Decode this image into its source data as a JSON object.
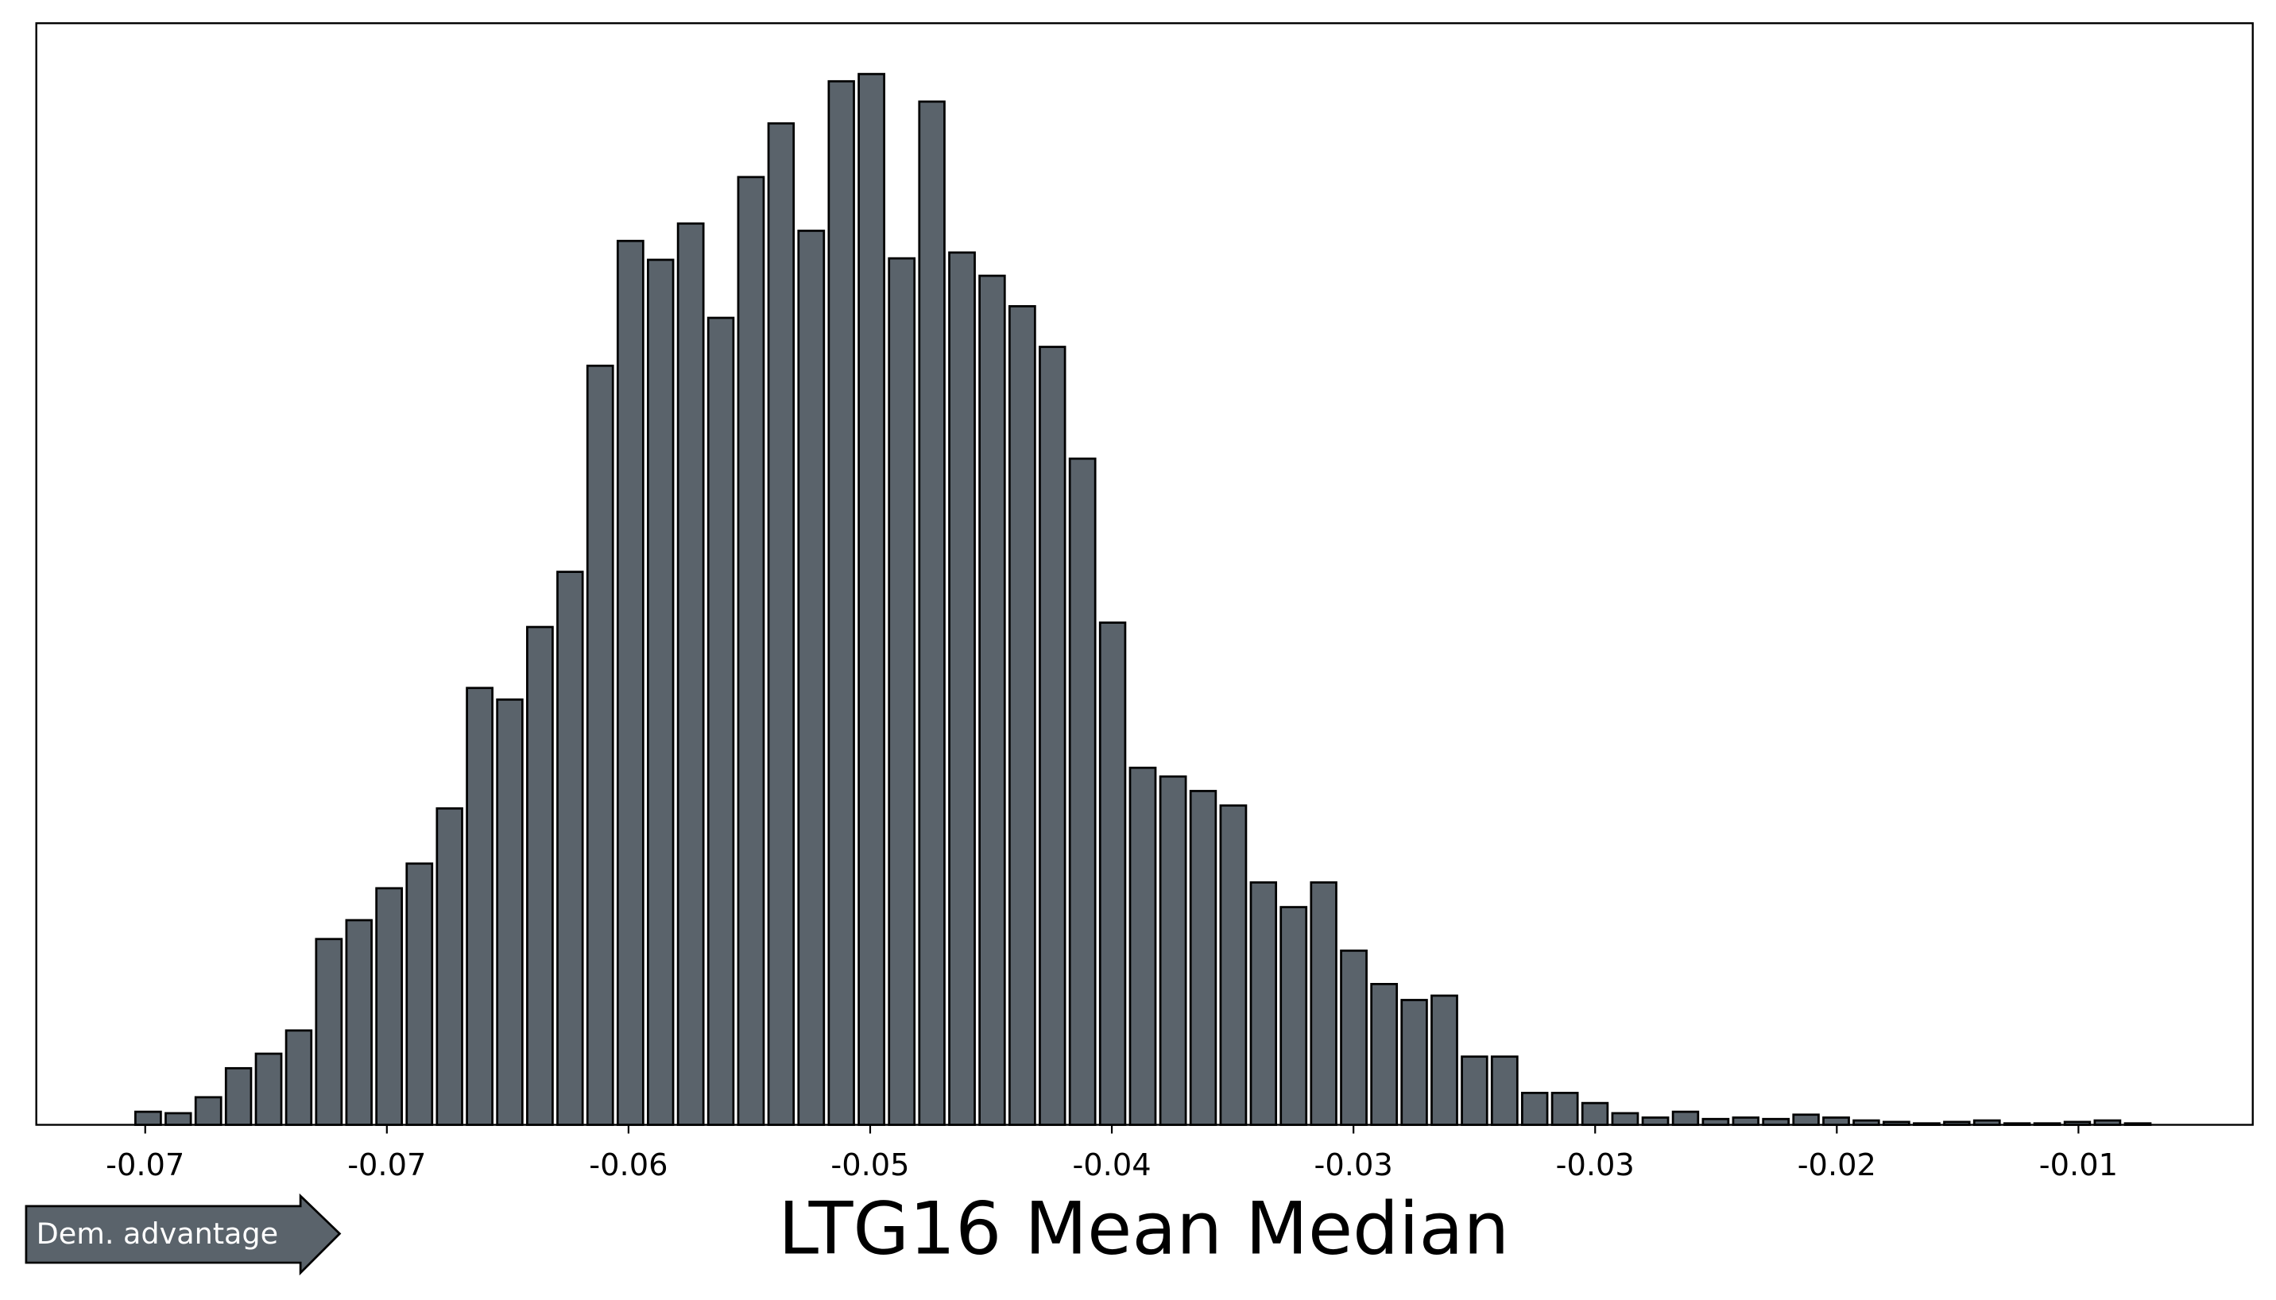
{
  "chart_data": {
    "type": "histogram",
    "xlabel": "LTG16 Mean Median",
    "annotation": "Dem. advantage",
    "color": "#5a636b",
    "xlim": [
      -0.07588,
      -0.00709
    ],
    "ylim": [
      0,
      759
    ],
    "xticks": [
      {
        "value": -0.0725,
        "label": "-0.07"
      },
      {
        "value": -0.065,
        "label": "-0.07"
      },
      {
        "value": -0.0575,
        "label": "-0.06"
      },
      {
        "value": -0.05,
        "label": "-0.05"
      },
      {
        "value": -0.0425,
        "label": "-0.04"
      },
      {
        "value": -0.035,
        "label": "-0.03"
      },
      {
        "value": -0.0275,
        "label": "-0.03"
      },
      {
        "value": -0.02,
        "label": "-0.02"
      },
      {
        "value": -0.0125,
        "label": "-0.01"
      }
    ],
    "bins": [
      -0.07288,
      -0.07194,
      -0.07101,
      -0.07007,
      -0.06914,
      -0.0682,
      -0.06727,
      -0.06633,
      -0.0654,
      -0.06446,
      -0.06352,
      -0.06259,
      -0.06165,
      -0.06072,
      -0.05978,
      -0.05885,
      -0.05791,
      -0.05697,
      -0.05604,
      -0.0551,
      -0.05417,
      -0.05323,
      -0.0523,
      -0.05136,
      -0.05043,
      -0.04949,
      -0.04855,
      -0.04762,
      -0.04668,
      -0.04575,
      -0.04481,
      -0.04388,
      -0.04294,
      -0.04201,
      -0.04107,
      -0.04013,
      -0.0392,
      -0.03826,
      -0.03733,
      -0.03639,
      -0.03546,
      -0.03452,
      -0.03358,
      -0.03265,
      -0.03171,
      -0.03078,
      -0.02984,
      -0.02891,
      -0.02797,
      -0.02704,
      -0.0261,
      -0.02516,
      -0.02423,
      -0.02329,
      -0.02236,
      -0.02142,
      -0.02049,
      -0.01955,
      -0.01862,
      -0.01768,
      -0.01674,
      -0.01581,
      -0.01487,
      -0.01394,
      -0.013,
      -0.01207,
      -0.01113,
      -0.01019
    ],
    "values": [
      9,
      8,
      19,
      39,
      49,
      65,
      128,
      141,
      163,
      180,
      218,
      301,
      293,
      343,
      381,
      523,
      609,
      596,
      621,
      556,
      653,
      690,
      616,
      719,
      724,
      597,
      705,
      601,
      585,
      564,
      536,
      459,
      346,
      246,
      240,
      230,
      220,
      167,
      150,
      167,
      120,
      97,
      86,
      89,
      47,
      47,
      22,
      22,
      15,
      8,
      5,
      9,
      4,
      5,
      4,
      7,
      5,
      3,
      2,
      1,
      2,
      3,
      1,
      1,
      2,
      3,
      1
    ]
  }
}
